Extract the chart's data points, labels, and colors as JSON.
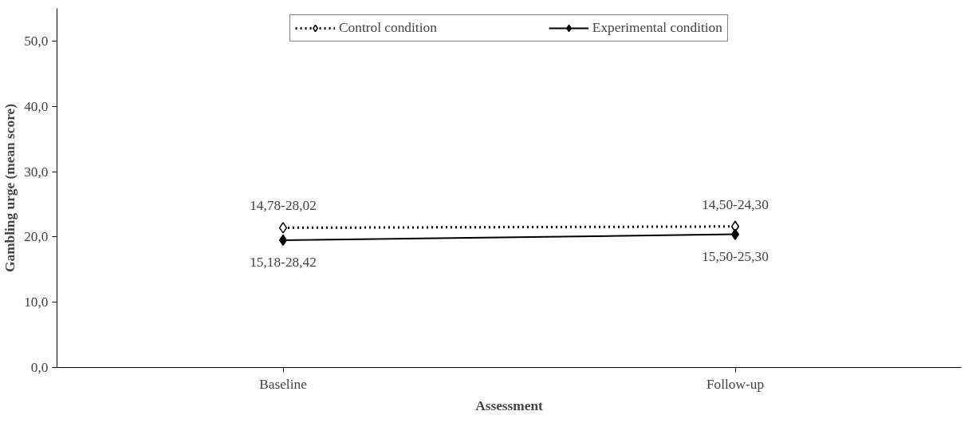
{
  "chart_data": {
    "type": "line",
    "xlabel": "Assessment",
    "ylabel": "Gambling urge (mean score)",
    "categories": [
      "Baseline",
      "Follow-up"
    ],
    "series": [
      {
        "name": "Control condition",
        "color": "#000000",
        "values": [
          21.4,
          21.6
        ],
        "line_style": "dotted",
        "marker": "diamond"
      },
      {
        "name": "Experimental condition",
        "color": "#000000",
        "values": [
          19.5,
          20.4
        ],
        "line_style": "solid",
        "marker": "diamond"
      }
    ],
    "ylim": [
      0,
      55
    ],
    "yticks": [
      {
        "value": 0,
        "label": "0,0"
      },
      {
        "value": 10,
        "label": "10,0"
      },
      {
        "value": 20,
        "label": "20,0"
      },
      {
        "value": 30,
        "label": "30,0"
      },
      {
        "value": 40,
        "label": "40,0"
      },
      {
        "value": 50,
        "label": "50,0"
      }
    ],
    "annotations": [
      {
        "text": "14,78-28,02",
        "x": "Baseline",
        "y": 21.4
      },
      {
        "text": "14,50-24,30",
        "x": "Follow-up",
        "y": 21.6
      },
      {
        "text": "15,18-28,42",
        "x": "Baseline",
        "y": 19.5
      },
      {
        "text": "15,50-25,30",
        "x": "Follow-up",
        "y": 20.4
      }
    ],
    "legend": "top",
    "grid": false
  }
}
